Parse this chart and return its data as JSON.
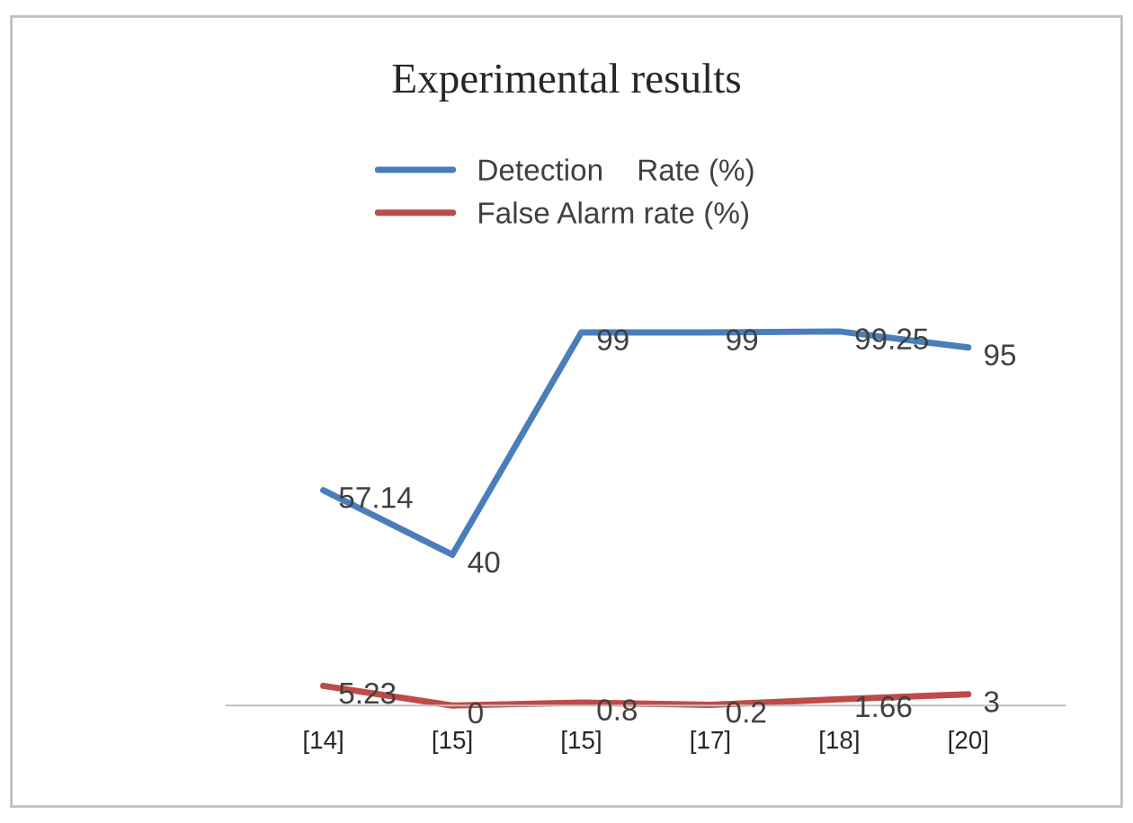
{
  "chart_data": {
    "type": "line",
    "title": "Experimental results",
    "categories": [
      "[14]",
      "[15]",
      "[15]",
      "[17]",
      "[18]",
      "[20]"
    ],
    "series": [
      {
        "name": "Detection    Rate (%)",
        "color": "#4a7ebb",
        "values": [
          57.14,
          40,
          99,
          99,
          99.25,
          95
        ]
      },
      {
        "name": "False Alarm rate (%)",
        "color": "#be4b48",
        "values": [
          5.23,
          0,
          0.8,
          0.2,
          1.66,
          3
        ]
      }
    ],
    "data_labels": true,
    "legend": "top",
    "grid": false,
    "marker": "none",
    "line_style": "solid"
  }
}
